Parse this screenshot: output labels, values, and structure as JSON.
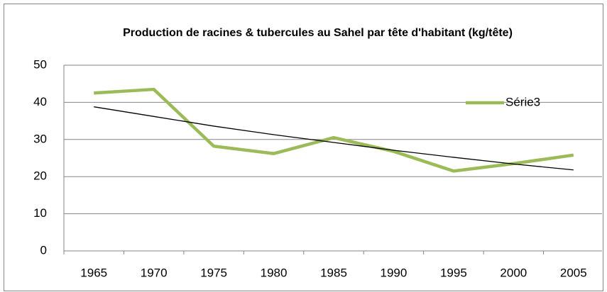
{
  "chart_data": {
    "type": "line",
    "title": "Production de racines & tubercules au Sahel par tête d'habitant (kg/tête)",
    "categories": [
      "1965",
      "1970",
      "1975",
      "1980",
      "1985",
      "1990",
      "1995",
      "2000",
      "2005"
    ],
    "series": [
      {
        "name": "Série3",
        "color": "#9bbb59",
        "values": [
          42.5,
          43.5,
          28.2,
          26.2,
          30.5,
          26.8,
          21.5,
          23.5,
          25.8
        ]
      }
    ],
    "trendline": {
      "color": "#000000",
      "values": [
        38.8,
        36.2,
        33.6,
        31.3,
        29.2,
        27.1,
        25.2,
        23.4,
        21.8
      ]
    },
    "ylim": [
      0,
      50
    ],
    "yticks": [
      0,
      10,
      20,
      30,
      40,
      50
    ],
    "grid": true,
    "legend": "right"
  }
}
